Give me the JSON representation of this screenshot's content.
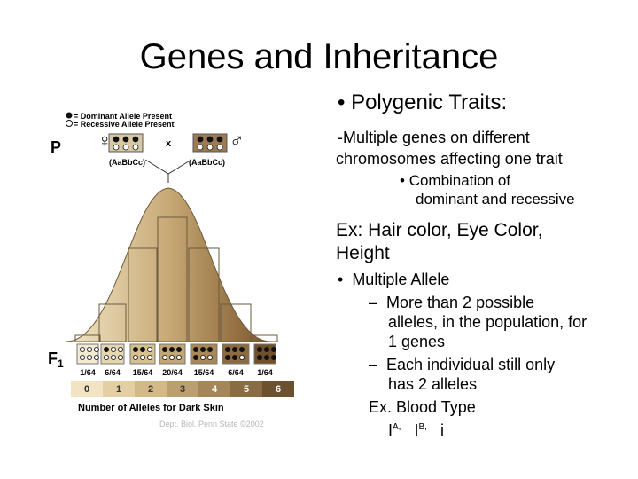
{
  "slide": {
    "title": "Genes and Inheritance",
    "bullet1": "Polygenic Traits:",
    "sub1_line1": "-Multiple genes on different",
    "sub1_line2": "chromosomes affecting one trait",
    "sub2_line1": "Combination of",
    "sub2_line2": "dominant and recessive",
    "ex_line1": "Ex: Hair color, Eye Color,",
    "ex_line2": "Height",
    "bullet2": "Multiple Allele",
    "dash1_line1": "More than 2 possible",
    "dash1_line2": "alleles, in the population, for",
    "dash1_line3": "1 genes",
    "dash2_line1": "Each individual still only",
    "dash2_line2": "has 2 alleles",
    "ex2": "Ex. Blood Type",
    "blood_i1": "I",
    "blood_sup1": "A,",
    "blood_i2": "I",
    "blood_sup2": "B,",
    "blood_i3": "i"
  },
  "figure": {
    "legend_dominant": "= Dominant Allele Present",
    "legend_recessive": "= Recessive Allele Present",
    "p_label": "P",
    "cross": "x",
    "parent_left_genotype": "(AaBbCc)",
    "parent_right_genotype": "(AaBbCc)",
    "f1_label": "F",
    "f1_sub": "1",
    "fractions": [
      "1/64",
      "6/64",
      "15/64",
      "20/64",
      "15/64",
      "6/64",
      "1/64"
    ],
    "allele_numbers": [
      "0",
      "1",
      "2",
      "3",
      "4",
      "5",
      "6"
    ],
    "xlabel": "Number of Alleles for Dark Skin",
    "credit": "Dept. Biol. Penn State ©2002",
    "female_symbol": "♀",
    "male_symbol": "♂"
  }
}
